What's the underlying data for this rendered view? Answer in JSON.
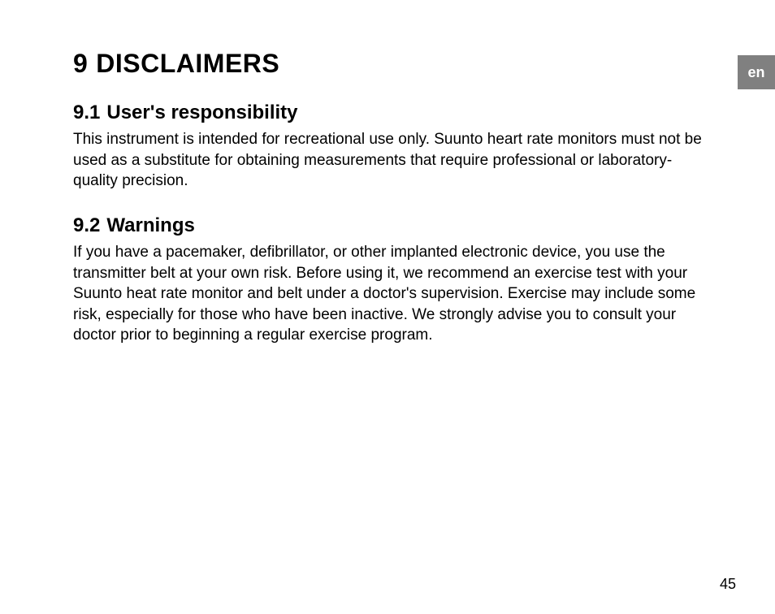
{
  "language_tab": "en",
  "chapter": {
    "number": "9",
    "title": "DISCLAIMERS"
  },
  "sections": [
    {
      "number": "9.1",
      "title": "User's responsibility",
      "body": "This instrument is intended for recreational use only. Suunto heart rate monitors must not be used as a substitute for obtaining measurements that require professional or laboratory-quality precision."
    },
    {
      "number": "9.2",
      "title": "Warnings",
      "body": "If you have a pacemaker, defibrillator, or other implanted electronic device, you use the transmitter belt at your own risk. Before using it, we recommend an exercise test with your Suunto heat rate monitor and belt under a doctor's supervision. Exercise may include some risk, especially for those who have been inactive. We strongly advise you to consult your doctor prior to beginning a regular exercise program."
    }
  ],
  "page_number": "45",
  "styling": {
    "background_color": "#ffffff",
    "text_color": "#000000",
    "lang_tab_bg": "#808080",
    "lang_tab_text_color": "#ffffff",
    "chapter_heading_fontsize": 32,
    "section_heading_fontsize": 24,
    "body_fontsize": 19,
    "page_number_fontsize": 18,
    "font_family": "Myriad Pro, Segoe UI, Arial, sans-serif"
  }
}
